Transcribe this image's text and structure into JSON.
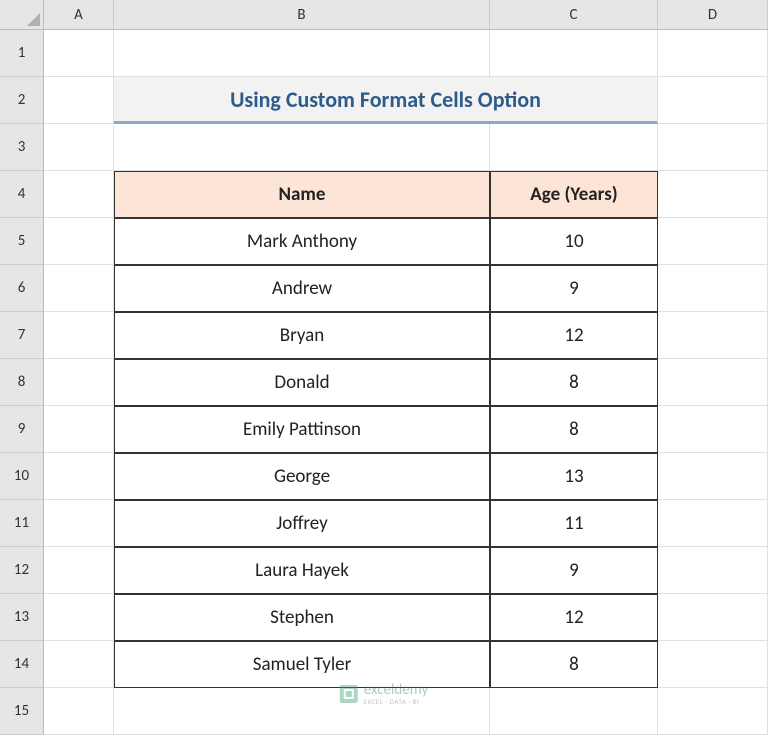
{
  "columns": [
    "A",
    "B",
    "C",
    "D"
  ],
  "rows": [
    "1",
    "2",
    "3",
    "4",
    "5",
    "6",
    "7",
    "8",
    "9",
    "10",
    "11",
    "12",
    "13",
    "14",
    "15"
  ],
  "title": "Using Custom Format Cells Option",
  "title_bg": "#f2f2f2",
  "title_color": "#2e5c8a",
  "title_underline": "#8fa7c8",
  "table": {
    "header_bg": "#fce4d6",
    "border_color": "#333333",
    "headers": {
      "name": "Name",
      "age": "Age (Years)"
    },
    "rows": [
      {
        "name": "Mark Anthony",
        "age": "10"
      },
      {
        "name": "Andrew",
        "age": "9"
      },
      {
        "name": "Bryan",
        "age": "12"
      },
      {
        "name": "Donald",
        "age": "8"
      },
      {
        "name": "Emily Pattinson",
        "age": "8"
      },
      {
        "name": "George",
        "age": "13"
      },
      {
        "name": "Joffrey",
        "age": "11"
      },
      {
        "name": "Laura Hayek",
        "age": "9"
      },
      {
        "name": "Stephen",
        "age": "12"
      },
      {
        "name": "Samuel Tyler",
        "age": "8"
      }
    ]
  },
  "watermark": {
    "main": "exceldemy",
    "sub": "EXCEL · DATA · BI"
  },
  "grid_colors": {
    "header_bg": "#e6e6e6",
    "header_border": "#cccccc",
    "cell_border": "#e0e0e0"
  }
}
